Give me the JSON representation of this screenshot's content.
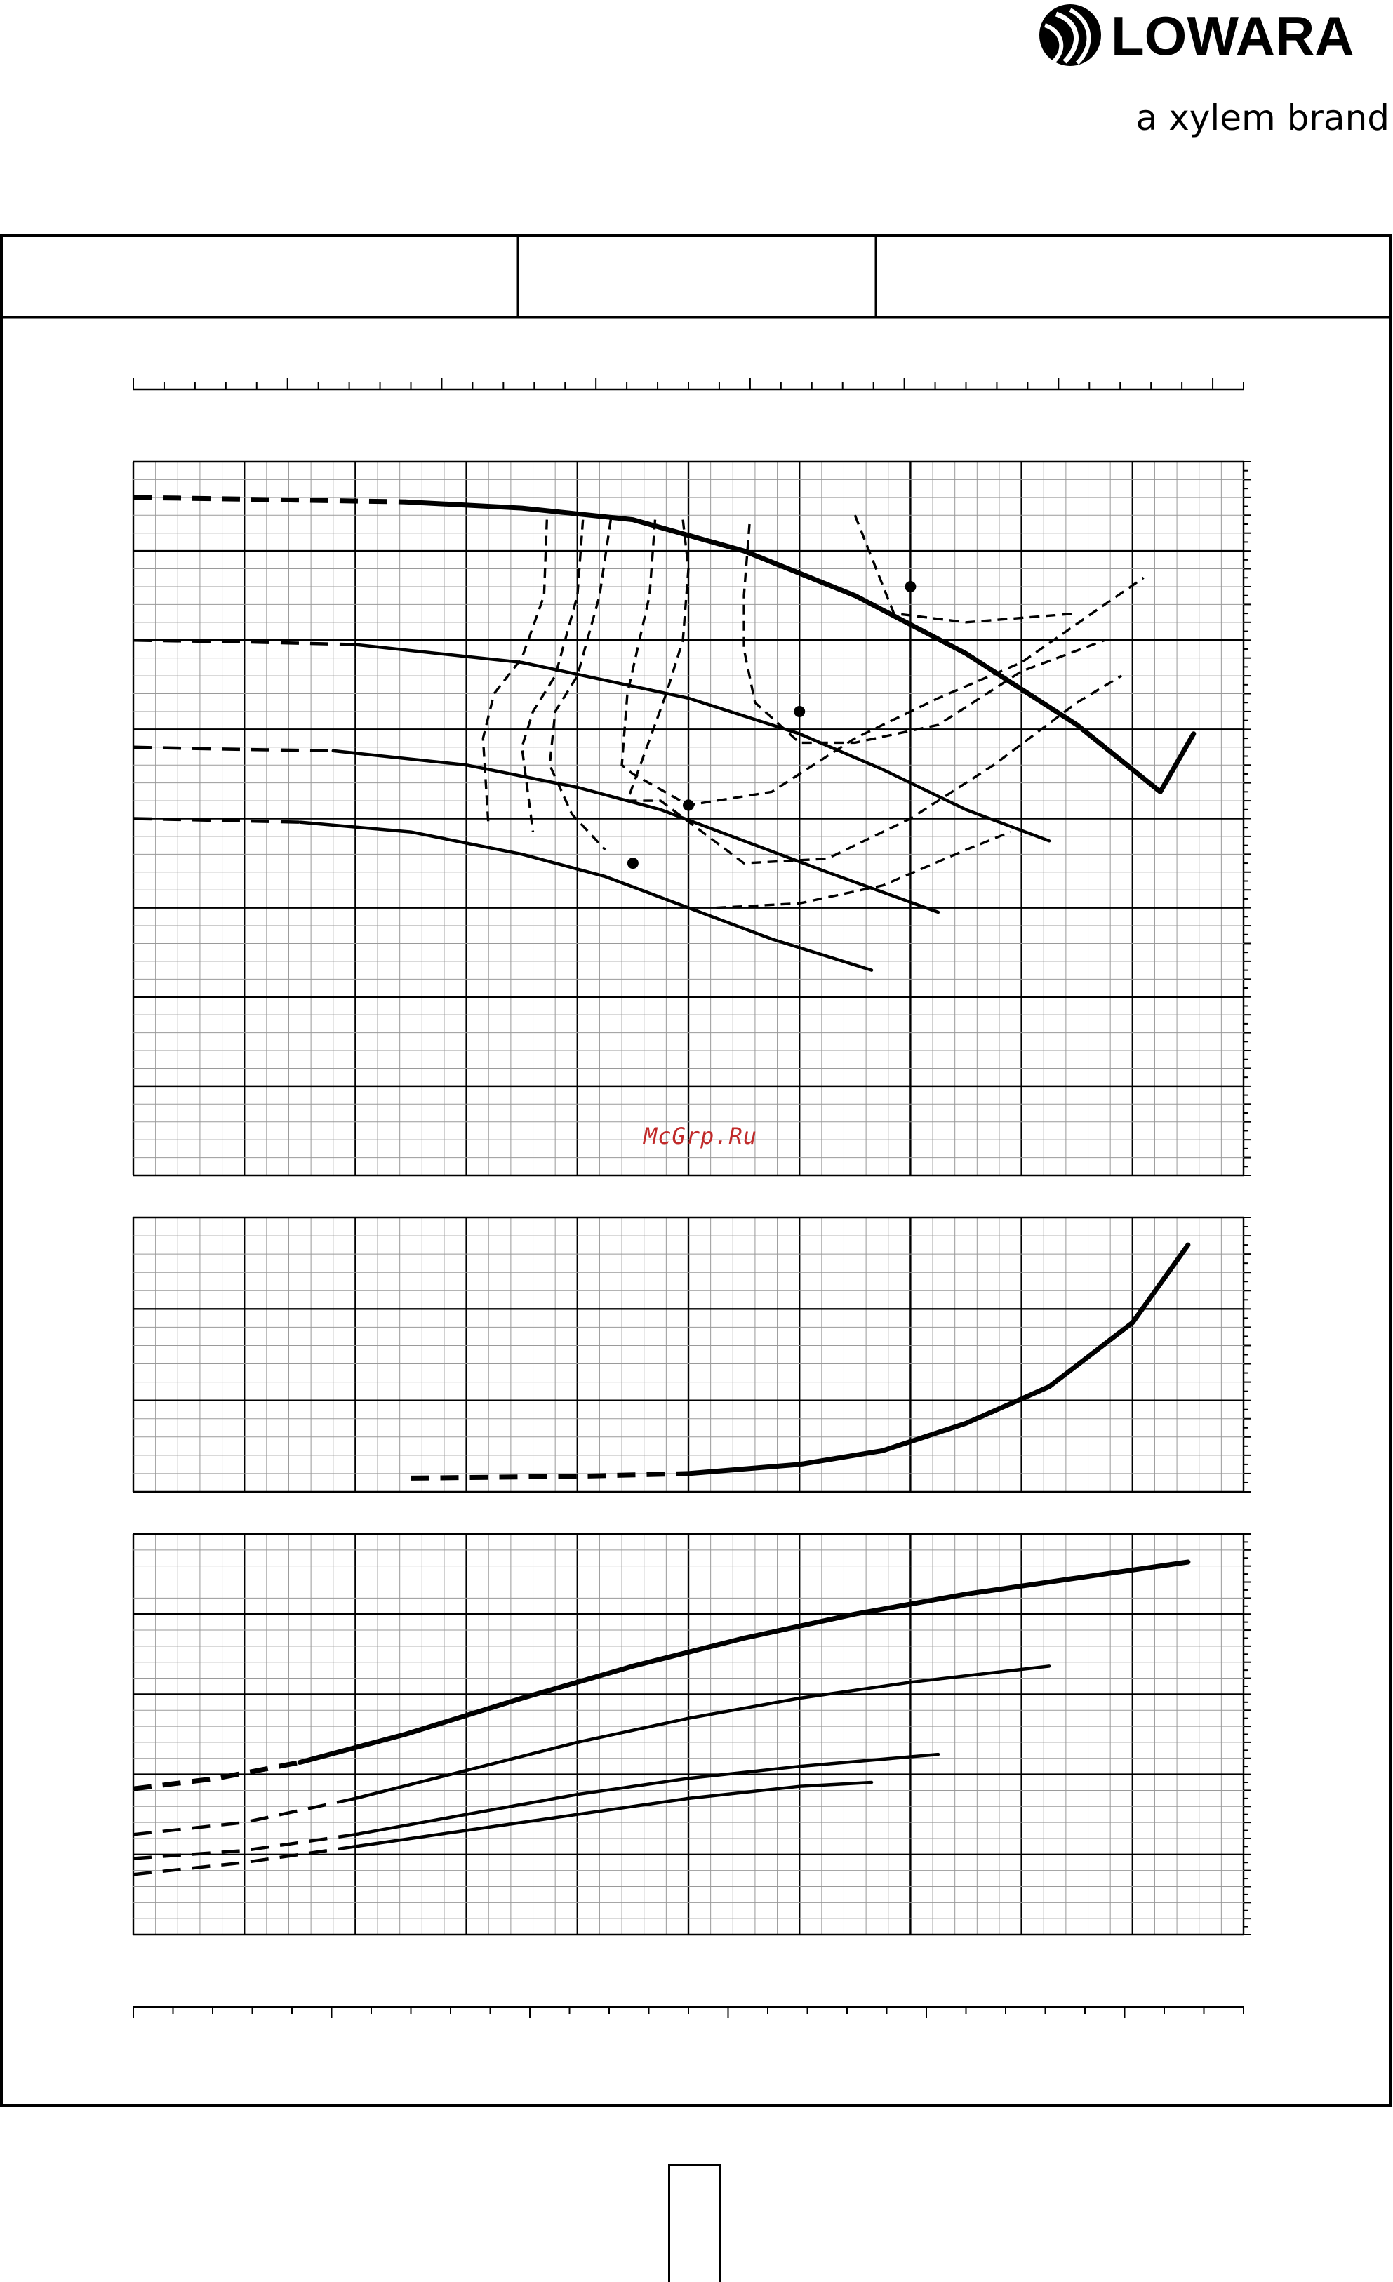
{
  "brand": {
    "name": "LOWARA",
    "tagline": "a xylem brand",
    "logo_icon": "droplet-swirl-icon",
    "color": "#000000"
  },
  "watermark": {
    "text": "McGrp.Ru",
    "color": "#c02a2a"
  },
  "header_cells": [
    "",
    "",
    ""
  ],
  "page_number": "",
  "chart_data": [
    {
      "name": "head-curves",
      "type": "line",
      "xlim": [
        0,
        20
      ],
      "ylim": [
        0,
        8
      ],
      "grid": true,
      "series": [
        {
          "style": "thick",
          "x": [
            0.0,
            2.0,
            4.9,
            7.0,
            9.0,
            11.0,
            13.0,
            15.0,
            17.0,
            18.5,
            19.1
          ],
          "y": [
            7.6,
            7.58,
            7.55,
            7.48,
            7.35,
            7.0,
            6.5,
            5.85,
            5.05,
            4.3,
            4.95
          ]
        },
        {
          "style": "normal",
          "x": [
            0.0,
            2.0,
            4.0,
            7.0,
            10.0,
            12.0,
            13.5,
            15.0,
            16.5
          ],
          "y": [
            6.0,
            5.98,
            5.95,
            5.75,
            5.35,
            4.95,
            4.55,
            4.1,
            3.75
          ]
        },
        {
          "style": "normal",
          "x": [
            0.0,
            1.5,
            3.6,
            6.0,
            8.0,
            9.5,
            11.0,
            12.5,
            14.5
          ],
          "y": [
            4.8,
            4.78,
            4.76,
            4.6,
            4.35,
            4.1,
            3.75,
            3.4,
            2.95
          ]
        },
        {
          "style": "normal",
          "x": [
            0.0,
            1.5,
            3.0,
            5.0,
            7.0,
            8.5,
            10.0,
            11.5,
            13.3
          ],
          "y": [
            4.0,
            3.98,
            3.96,
            3.85,
            3.6,
            3.35,
            3.0,
            2.65,
            2.3
          ]
        }
      ],
      "operating_points": [
        {
          "x": 14.0,
          "y": 6.6
        },
        {
          "x": 12.0,
          "y": 5.2
        },
        {
          "x": 10.0,
          "y": 4.15
        },
        {
          "x": 9.0,
          "y": 3.5
        }
      ],
      "iso_lines": [
        {
          "x": [
            7.45,
            7.4,
            7.0,
            6.5,
            6.3,
            6.4
          ],
          "y": [
            7.35,
            6.5,
            5.8,
            5.4,
            4.9,
            3.9
          ]
        },
        {
          "x": [
            8.1,
            8.0,
            7.6,
            7.2,
            7.0,
            7.2
          ],
          "y": [
            7.35,
            6.5,
            5.6,
            5.2,
            4.8,
            3.85
          ]
        },
        {
          "x": [
            8.6,
            8.4,
            8.0,
            7.6,
            7.5,
            7.9,
            8.5
          ],
          "y": [
            7.35,
            6.5,
            5.6,
            5.2,
            4.6,
            4.05,
            3.65
          ]
        },
        {
          "x": [
            9.4,
            9.3,
            8.9,
            8.8,
            9.0,
            10.0,
            11.5,
            13.0,
            14.5,
            16.0,
            17.5,
            18.2
          ],
          "y": [
            7.35,
            6.5,
            5.4,
            4.6,
            4.5,
            4.15,
            4.3,
            4.9,
            5.35,
            5.75,
            6.4,
            6.7
          ]
        },
        {
          "x": [
            9.9,
            10.0,
            9.9,
            9.6,
            8.9,
            9.5,
            11.0,
            12.5,
            14.0,
            15.5,
            17.0,
            17.8
          ],
          "y": [
            7.35,
            6.8,
            6.0,
            5.4,
            4.2,
            4.2,
            3.5,
            3.55,
            4.0,
            4.6,
            5.3,
            5.6
          ]
        },
        {
          "x": [
            11.1,
            11.0,
            11.0,
            11.2,
            12.0,
            13.0,
            14.5,
            16.0,
            17.5
          ],
          "y": [
            7.3,
            6.5,
            5.9,
            5.3,
            4.85,
            4.85,
            5.05,
            5.65,
            6.0
          ]
        },
        {
          "x": [
            13.0,
            13.7,
            15.0,
            16.0,
            17.0
          ],
          "y": [
            7.4,
            6.3,
            6.2,
            6.25,
            6.3
          ]
        },
        {
          "x": [
            10.5,
            12.0,
            13.5,
            15.0,
            15.8
          ],
          "y": [
            3.0,
            3.05,
            3.25,
            3.65,
            3.85
          ]
        }
      ]
    },
    {
      "name": "npsh-curve",
      "type": "line",
      "xlim": [
        0,
        20
      ],
      "ylim": [
        0,
        3
      ],
      "grid": true,
      "series": [
        {
          "style": "thick",
          "x": [
            5.0,
            8.0,
            10.0,
            12.0,
            13.5,
            15.0,
            16.5,
            18.0,
            19.0
          ],
          "y": [
            0.15,
            0.17,
            0.2,
            0.3,
            0.45,
            0.75,
            1.15,
            1.85,
            2.7
          ]
        }
      ]
    },
    {
      "name": "power-curves",
      "type": "line",
      "xlim": [
        0,
        20
      ],
      "ylim": [
        0,
        5
      ],
      "grid": true,
      "series": [
        {
          "style": "thick",
          "x": [
            0.0,
            1.5,
            3.0,
            4.9,
            7.0,
            9.0,
            11.0,
            13.0,
            15.0,
            17.0,
            19.0
          ],
          "y": [
            1.82,
            1.95,
            2.15,
            2.5,
            2.95,
            3.35,
            3.7,
            4.0,
            4.25,
            4.45,
            4.65
          ]
        },
        {
          "style": "normal",
          "x": [
            0.0,
            2.0,
            4.0,
            6.0,
            8.0,
            10.0,
            12.0,
            14.0,
            16.5
          ],
          "y": [
            1.25,
            1.4,
            1.7,
            2.05,
            2.4,
            2.7,
            2.95,
            3.15,
            3.35
          ]
        },
        {
          "style": "normal",
          "x": [
            0.0,
            2.0,
            4.0,
            6.0,
            8.0,
            10.0,
            12.0,
            14.5
          ],
          "y": [
            0.95,
            1.05,
            1.25,
            1.5,
            1.75,
            1.95,
            2.1,
            2.25
          ]
        },
        {
          "style": "normal",
          "x": [
            0.0,
            2.0,
            4.0,
            6.0,
            8.0,
            10.0,
            12.0,
            13.3
          ],
          "y": [
            0.75,
            0.9,
            1.1,
            1.3,
            1.5,
            1.7,
            1.85,
            1.9
          ]
        }
      ]
    }
  ]
}
